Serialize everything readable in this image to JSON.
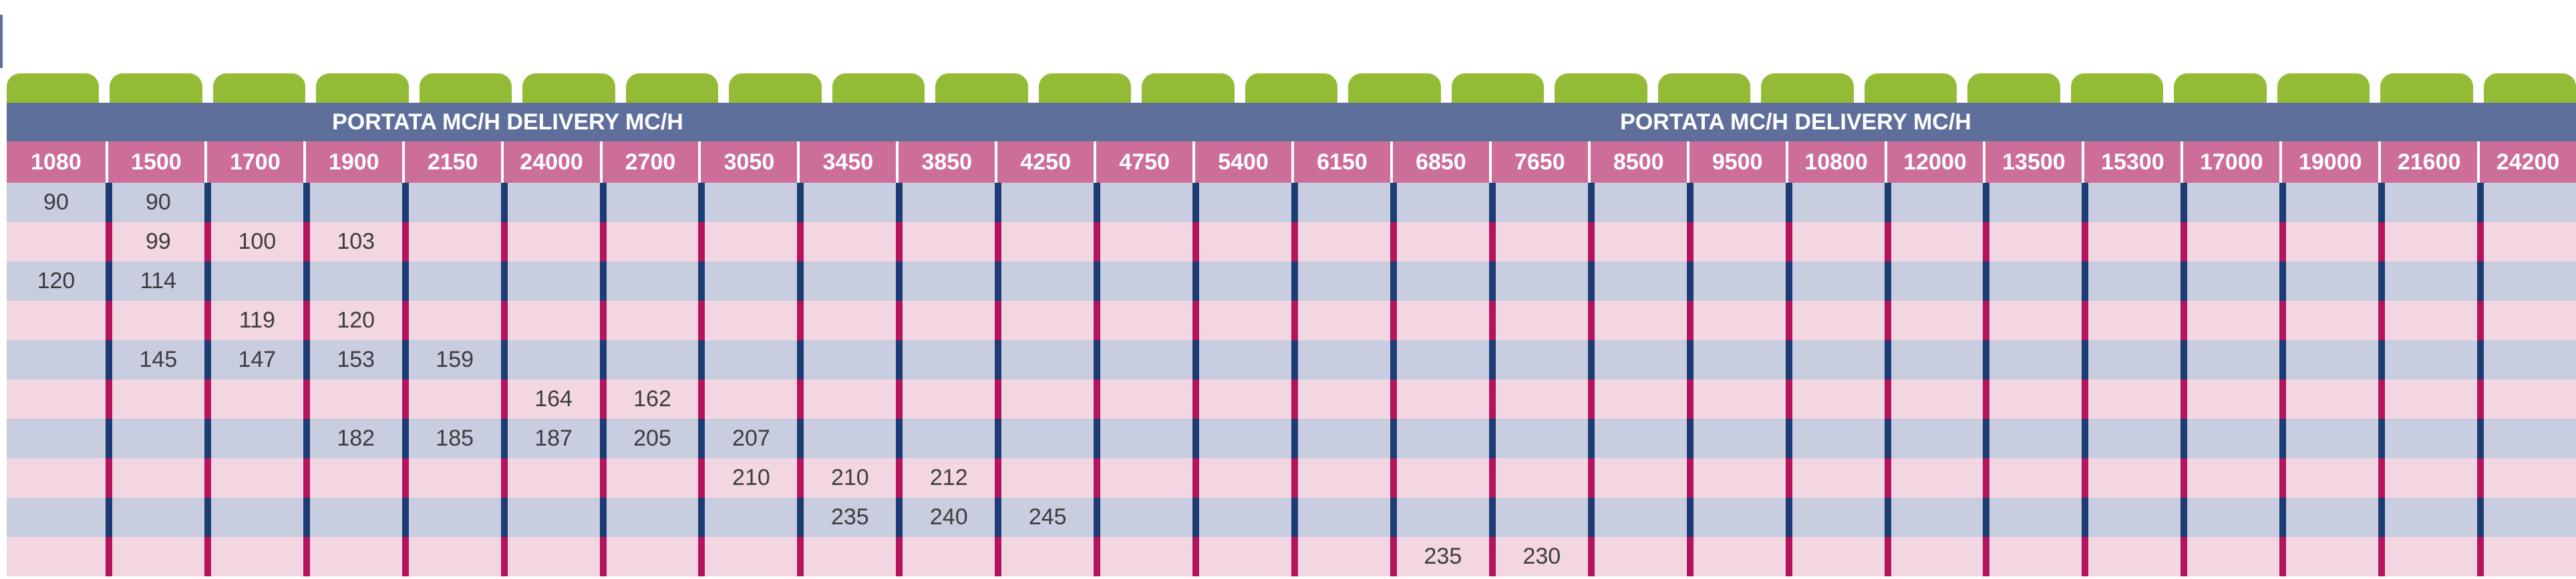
{
  "table": {
    "header_left": "PORTATA MC/H DELIVERY MC/H",
    "header_right": "PORTATA MC/H DELIVERY MC/H",
    "columns": [
      "1080",
      "1500",
      "1700",
      "1900",
      "2150",
      "24000",
      "2700",
      "3050",
      "3450",
      "3850",
      "4250",
      "4750",
      "5400",
      "6150",
      "6850",
      "7650",
      "8500",
      "9500",
      "10800",
      "12000",
      "13500",
      "15300",
      "17000",
      "19000",
      "21600",
      "24200"
    ],
    "rows": [
      [
        "90",
        "90",
        "",
        "",
        "",
        "",
        "",
        "",
        "",
        "",
        "",
        "",
        "",
        "",
        "",
        "",
        "",
        "",
        "",
        "",
        "",
        "",
        "",
        "",
        "",
        ""
      ],
      [
        "",
        "99",
        "100",
        "103",
        "",
        "",
        "",
        "",
        "",
        "",
        "",
        "",
        "",
        "",
        "",
        "",
        "",
        "",
        "",
        "",
        "",
        "",
        "",
        "",
        "",
        ""
      ],
      [
        "120",
        "114",
        "",
        "",
        "",
        "",
        "",
        "",
        "",
        "",
        "",
        "",
        "",
        "",
        "",
        "",
        "",
        "",
        "",
        "",
        "",
        "",
        "",
        "",
        "",
        ""
      ],
      [
        "",
        "",
        "119",
        "120",
        "",
        "",
        "",
        "",
        "",
        "",
        "",
        "",
        "",
        "",
        "",
        "",
        "",
        "",
        "",
        "",
        "",
        "",
        "",
        "",
        "",
        ""
      ],
      [
        "",
        "145",
        "147",
        "153",
        "159",
        "",
        "",
        "",
        "",
        "",
        "",
        "",
        "",
        "",
        "",
        "",
        "",
        "",
        "",
        "",
        "",
        "",
        "",
        "",
        "",
        ""
      ],
      [
        "",
        "",
        "",
        "",
        "",
        "164",
        "162",
        "",
        "",
        "",
        "",
        "",
        "",
        "",
        "",
        "",
        "",
        "",
        "",
        "",
        "",
        "",
        "",
        "",
        "",
        ""
      ],
      [
        "",
        "",
        "",
        "182",
        "185",
        "187",
        "205",
        "207",
        "",
        "",
        "",
        "",
        "",
        "",
        "",
        "",
        "",
        "",
        "",
        "",
        "",
        "",
        "",
        "",
        "",
        ""
      ],
      [
        "",
        "",
        "",
        "",
        "",
        "",
        "",
        "210",
        "210",
        "212",
        "",
        "",
        "",
        "",
        "",
        "",
        "",
        "",
        "",
        "",
        "",
        "",
        "",
        "",
        "",
        ""
      ],
      [
        "",
        "",
        "",
        "",
        "",
        "",
        "",
        "",
        "235",
        "240",
        "245",
        "",
        "",
        "",
        "",
        "",
        "",
        "",
        "",
        "",
        "",
        "",
        "",
        "",
        "",
        ""
      ],
      [
        "",
        "",
        "",
        "",
        "",
        "",
        "",
        "",
        "",
        "",
        "",
        "",
        "",
        "",
        "235",
        "230",
        "",
        "",
        "",
        "",
        "",
        "",
        "",
        "",
        "",
        ""
      ]
    ]
  },
  "colors": {
    "tab_green": "#94bb35",
    "title_band_blue": "#5d6f9a",
    "header_pink": "#cc6d9a",
    "row_blue": "#c8cde0",
    "row_pink": "#f2d6e2",
    "divider_navy": "#1d3c73",
    "divider_magenta": "#b4135e"
  }
}
